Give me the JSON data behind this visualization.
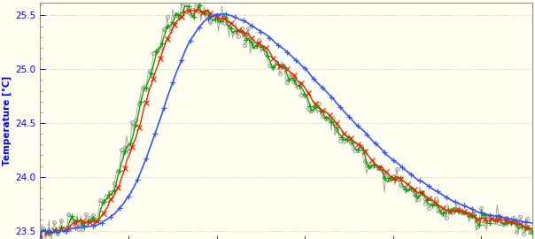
{
  "background_color": "#FFFEF0",
  "ylabel": "Temperature [°C]",
  "ylim": [
    23.42,
    25.62
  ],
  "yticks": [
    23.5,
    24.0,
    24.5,
    25.0,
    25.5
  ],
  "grid_color": "#AAAAAA",
  "noisy_color": "#999999",
  "red_color": "#EE2200",
  "green_color": "#00AA00",
  "blue_color": "#3355FF"
}
